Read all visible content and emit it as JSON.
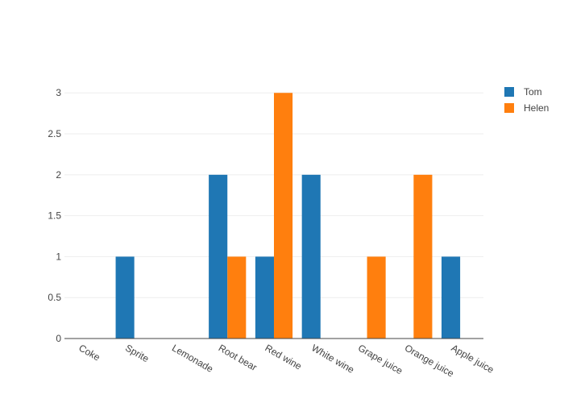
{
  "colors": {
    "background": "#ffffff",
    "grid": "#eeeeee",
    "axis_line": "#444444",
    "text": "#444444"
  },
  "chart_data": {
    "type": "bar",
    "barmode": "group",
    "categories": [
      "Coke",
      "Sprite",
      "Lemonade",
      "Root bear",
      "Red wine",
      "White wine",
      "Grape juice",
      "Orange juice",
      "Apple juice"
    ],
    "series": [
      {
        "name": "Tom",
        "color": "#1f77b4",
        "values": [
          0,
          1,
          0,
          2,
          1,
          2,
          0,
          0,
          1
        ]
      },
      {
        "name": "Helen",
        "color": "#ff7f0e",
        "values": [
          0,
          0,
          0,
          1,
          3,
          0,
          1,
          2,
          0
        ]
      }
    ],
    "ylim": [
      0,
      3.15
    ],
    "yticks": [
      0,
      0.5,
      1,
      1.5,
      2,
      2.5,
      3
    ],
    "ytick_labels": [
      "0",
      "0.5",
      "1",
      "1.5",
      "2",
      "2.5",
      "3"
    ],
    "grid": true,
    "legend_position": "top-right",
    "xtick_rotation": 30
  }
}
